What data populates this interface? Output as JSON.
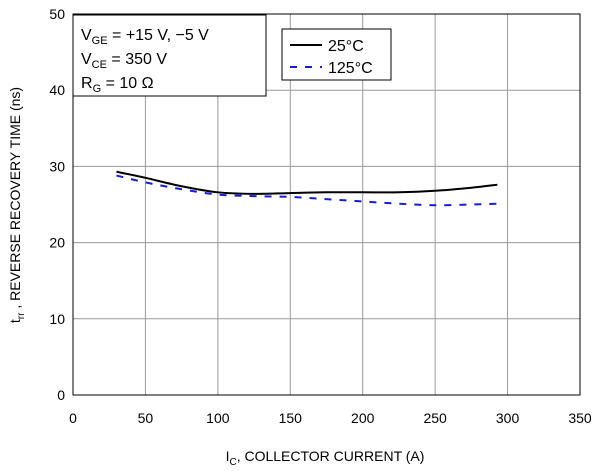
{
  "chart_data": {
    "type": "line",
    "xlabel_main": "I",
    "xlabel_sub": "C",
    "xlabel_rest": ", COLLECTOR CURRENT (A)",
    "ylabel_main": "t",
    "ylabel_sub": "rr",
    "ylabel_rest": " , REVERSE RECOVERY TIME (ns)",
    "xlim": [
      0,
      350
    ],
    "ylim": [
      0,
      50
    ],
    "x_ticks": [
      0,
      50,
      100,
      150,
      200,
      250,
      300,
      350
    ],
    "y_ticks": [
      0,
      10,
      20,
      30,
      40,
      50
    ],
    "grid": true,
    "conditions": [
      {
        "main": "V",
        "sub": "GE",
        "rest": " = +15 V, −5 V"
      },
      {
        "main": "V",
        "sub": "CE",
        "rest": " = 350 V"
      },
      {
        "main": "R",
        "sub": "G",
        "rest": " = 10 Ω"
      }
    ],
    "series": [
      {
        "name": "25°C",
        "style": "solid",
        "color": "#000000",
        "x": [
          30,
          50,
          75,
          100,
          125,
          150,
          175,
          200,
          225,
          250,
          275,
          293
        ],
        "y": [
          29.3,
          28.5,
          27.4,
          26.6,
          26.4,
          26.5,
          26.6,
          26.6,
          26.6,
          26.8,
          27.2,
          27.6
        ]
      },
      {
        "name": "125°C",
        "style": "dashed",
        "color": "#1a1adb",
        "x": [
          30,
          50,
          75,
          100,
          125,
          150,
          175,
          200,
          225,
          250,
          275,
          293
        ],
        "y": [
          28.8,
          27.9,
          27.0,
          26.3,
          26.1,
          26.0,
          25.7,
          25.4,
          25.1,
          24.9,
          25.0,
          25.1
        ]
      }
    ]
  }
}
